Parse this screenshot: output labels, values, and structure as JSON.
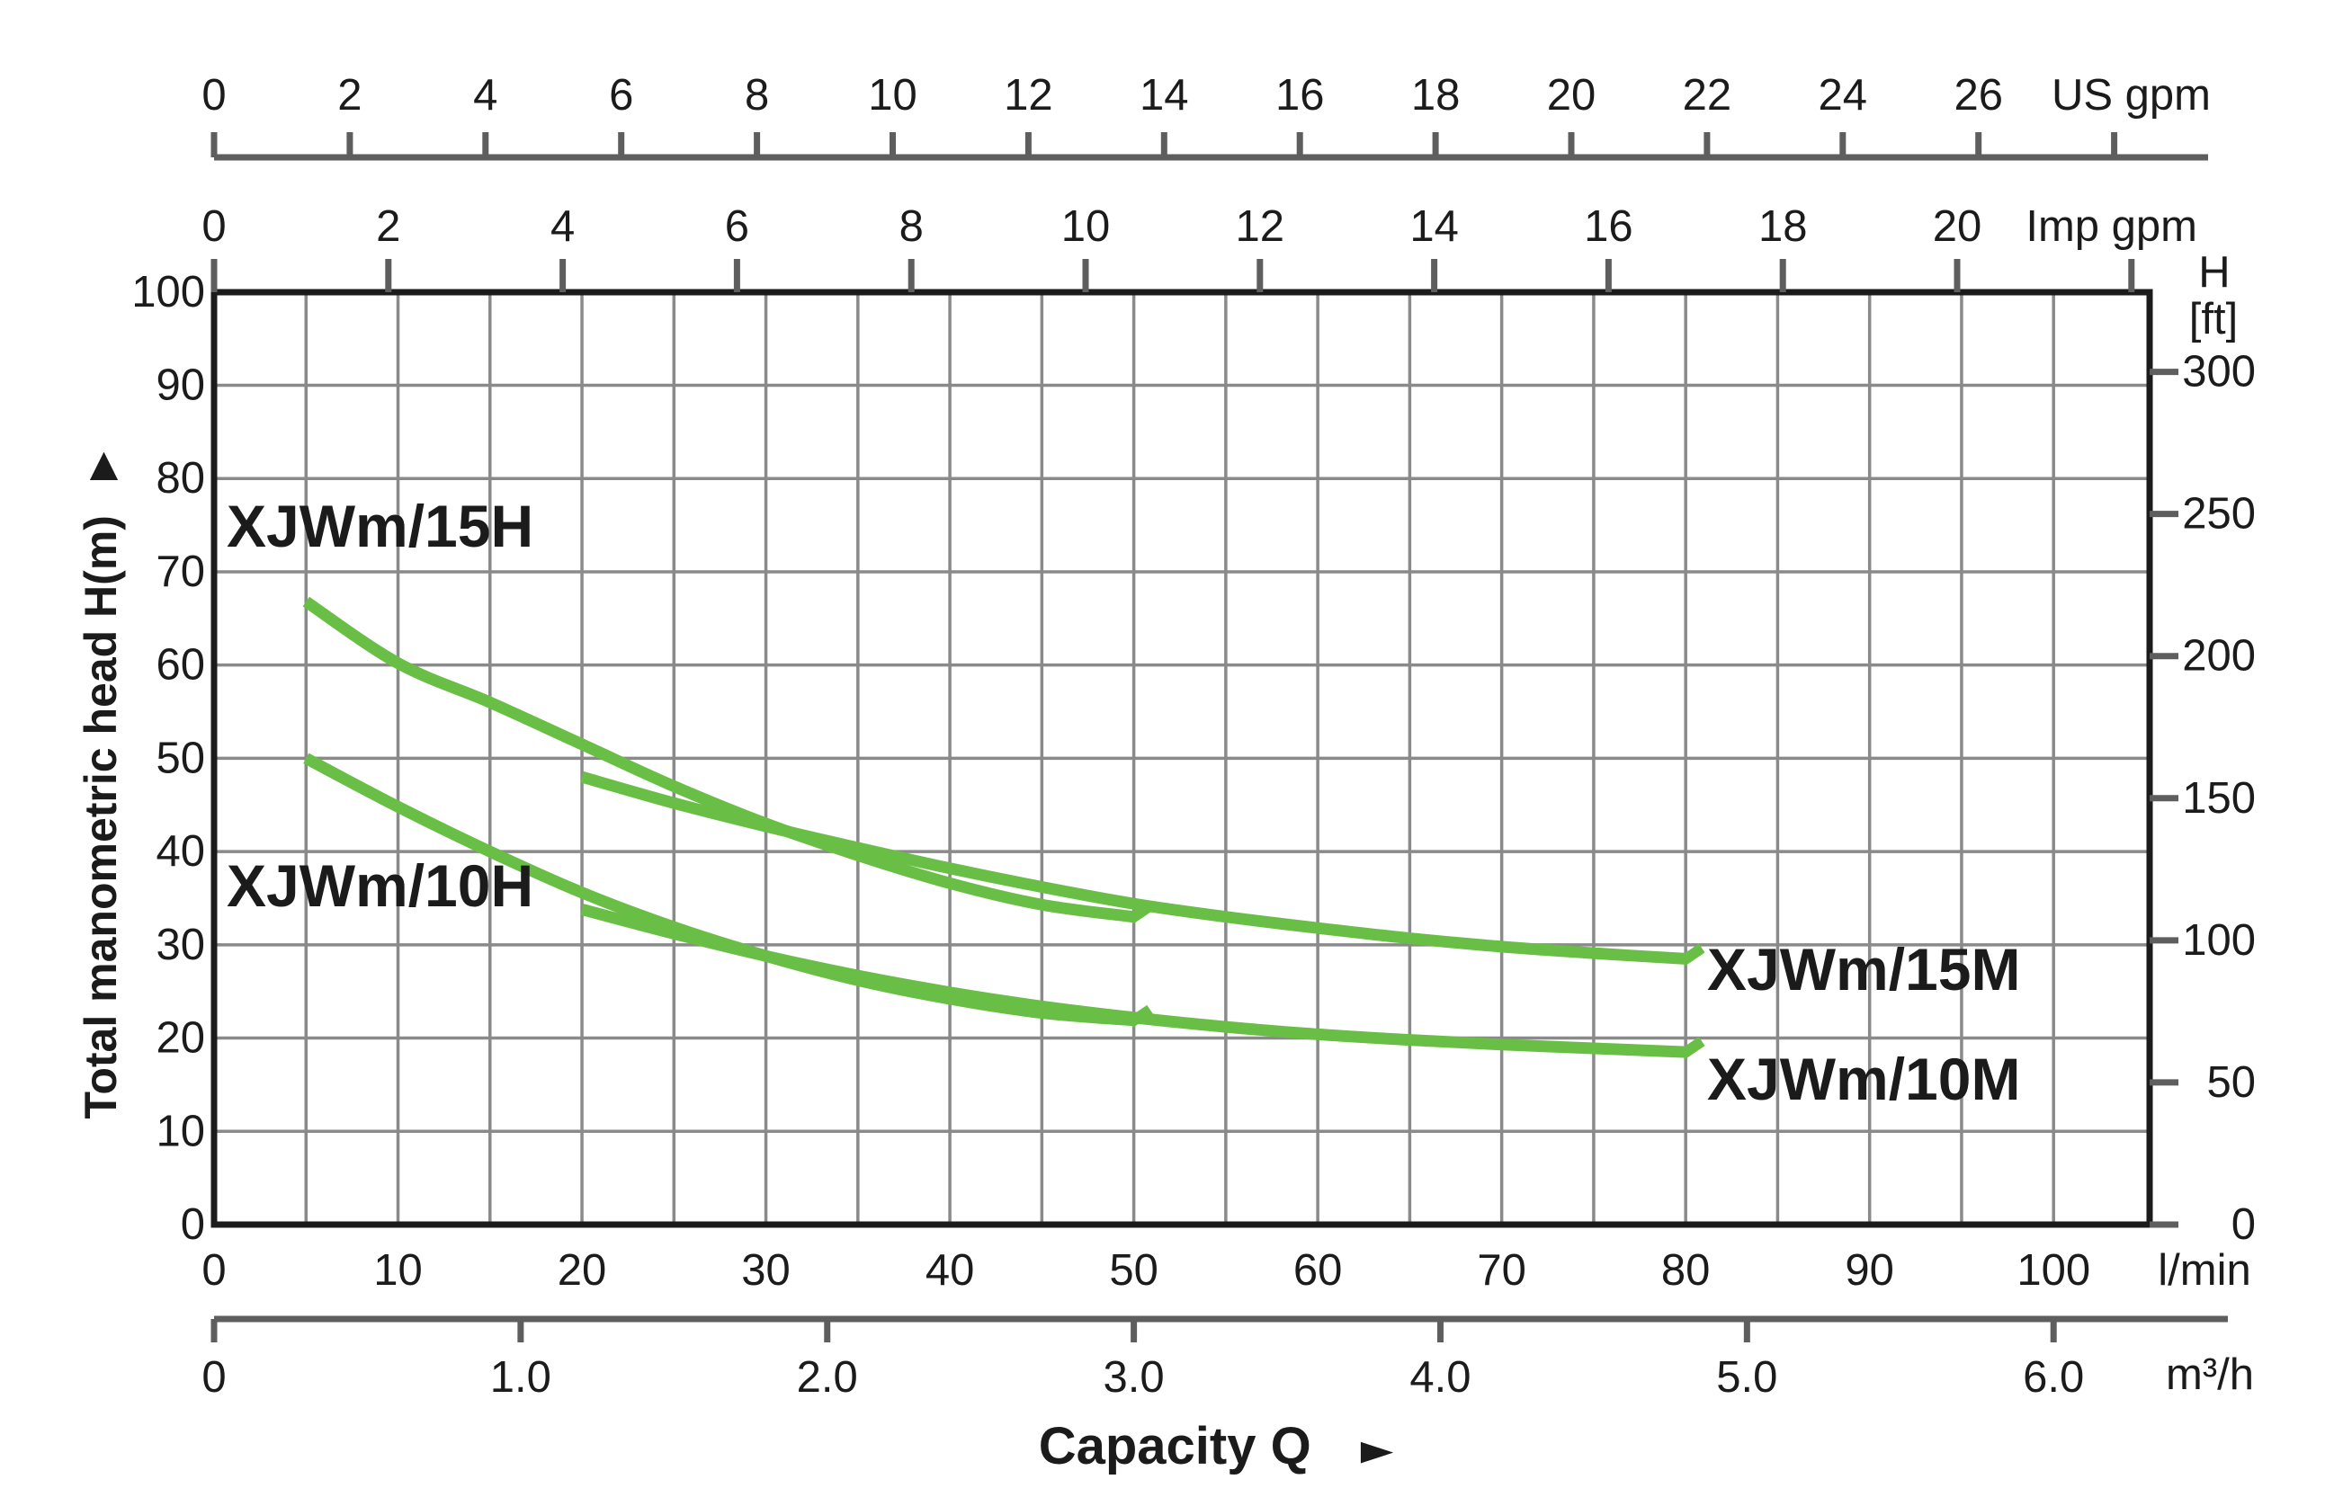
{
  "colors": {
    "curve_green": "#69be46",
    "grid_gray": "#8a8a8a",
    "axis_gray": "#5e5e5e",
    "ink_black": "#1b1b1b",
    "background": "#ffffff"
  },
  "icons": {
    "up_arrow": "▲",
    "right_arrow": "►"
  },
  "chart_data": {
    "type": "line",
    "x_label": "Capacity Q",
    "grid": {
      "x_step_l_min": 5,
      "y_step_m": 10,
      "grid_on": true
    },
    "x_axes": {
      "us_gpm": {
        "unit": "US gpm",
        "ticks": [
          0,
          2,
          4,
          6,
          8,
          10,
          12,
          14,
          16,
          18,
          20,
          22,
          24,
          26
        ],
        "end_tick_value": 28
      },
      "imp_gpm": {
        "unit": "Imp gpm",
        "ticks": [
          0,
          2,
          4,
          6,
          8,
          10,
          12,
          14,
          16,
          18,
          20
        ],
        "end_tick_value": 22
      },
      "l_min": {
        "unit": "l/min",
        "ticks": [
          0,
          10,
          20,
          30,
          40,
          50,
          60,
          70,
          80,
          90,
          100
        ],
        "range": [
          0,
          105.2
        ]
      },
      "m3_h": {
        "unit": "m³/h",
        "tick_values": [
          0,
          1,
          2,
          3,
          4,
          5,
          6
        ],
        "tick_labels": [
          "0",
          "1.0",
          "2.0",
          "3.0",
          "4.0",
          "5.0",
          "6.0"
        ]
      }
    },
    "y_axes": {
      "head_m": {
        "label": "Total manometric head H(m)",
        "ticks": [
          0,
          10,
          20,
          30,
          40,
          50,
          60,
          70,
          80,
          90,
          100
        ],
        "range": [
          0,
          100
        ]
      },
      "head_ft": {
        "label_lines": [
          "H",
          "[ft]"
        ],
        "ticks": [
          0,
          50,
          100,
          150,
          200,
          250,
          300
        ]
      }
    },
    "series": [
      {
        "name": "XJWm/15H",
        "unit_x": "l/min",
        "unit_y": "m",
        "points": [
          [
            5,
            66.8
          ],
          [
            10,
            60.2
          ],
          [
            15,
            56
          ],
          [
            20,
            51.5
          ],
          [
            25,
            47
          ],
          [
            30,
            43
          ],
          [
            35,
            39.6
          ],
          [
            40,
            36.6
          ],
          [
            45,
            34.3
          ],
          [
            50,
            33
          ]
        ]
      },
      {
        "name": "XJWm/10H",
        "unit_x": "l/min",
        "unit_y": "m",
        "points": [
          [
            5,
            50
          ],
          [
            10,
            44.8
          ],
          [
            15,
            40
          ],
          [
            20,
            35.6
          ],
          [
            25,
            31.9
          ],
          [
            30,
            28.8
          ],
          [
            35,
            26.2
          ],
          [
            40,
            24.2
          ],
          [
            45,
            22.7
          ],
          [
            50,
            21.9
          ]
        ]
      },
      {
        "name": "XJWm/15M",
        "unit_x": "l/min",
        "unit_y": "m",
        "points": [
          [
            20,
            48
          ],
          [
            25,
            45.2
          ],
          [
            30,
            42.7
          ],
          [
            35,
            40.4
          ],
          [
            40,
            38.2
          ],
          [
            45,
            36.2
          ],
          [
            50,
            34.4
          ],
          [
            55,
            33
          ],
          [
            60,
            31.8
          ],
          [
            65,
            30.7
          ],
          [
            70,
            29.8
          ],
          [
            75,
            29.1
          ],
          [
            80,
            28.5
          ]
        ]
      },
      {
        "name": "XJWm/10M",
        "unit_x": "l/min",
        "unit_y": "m",
        "points": [
          [
            20,
            33.8
          ],
          [
            25,
            31.2
          ],
          [
            30,
            28.8
          ],
          [
            35,
            26.7
          ],
          [
            40,
            24.9
          ],
          [
            45,
            23.4
          ],
          [
            50,
            22.2
          ],
          [
            55,
            21.2
          ],
          [
            60,
            20.4
          ],
          [
            65,
            19.8
          ],
          [
            70,
            19.3
          ],
          [
            75,
            18.9
          ],
          [
            80,
            18.5
          ]
        ]
      }
    ]
  }
}
